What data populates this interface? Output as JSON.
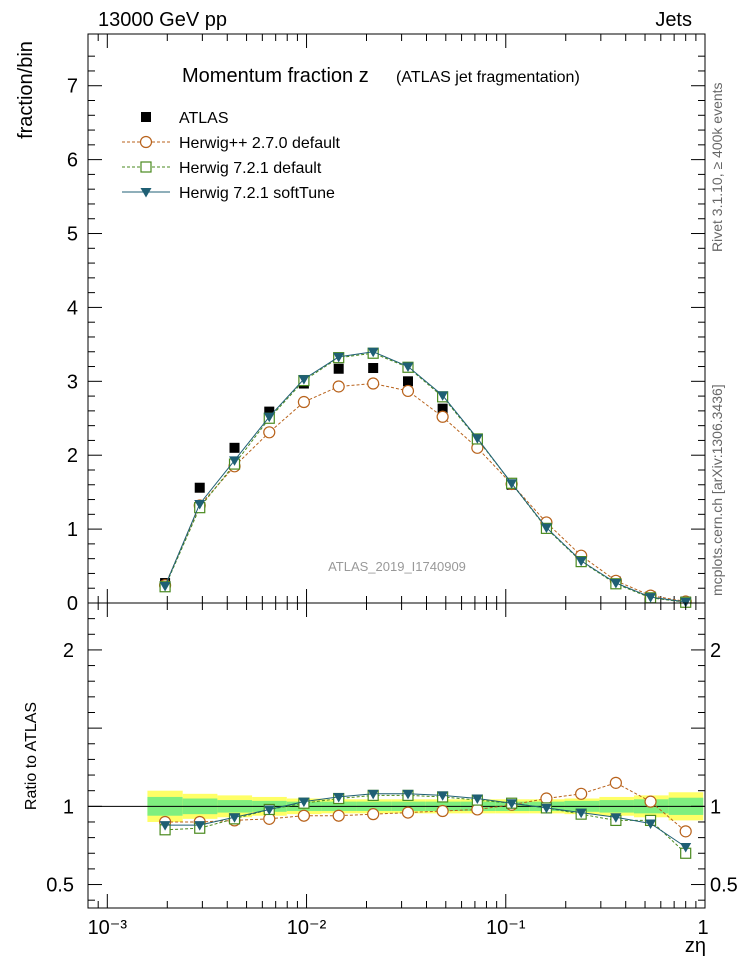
{
  "header": {
    "left": "13000 GeV pp",
    "right": "Jets",
    "side_right": "Rivet 3.1.10, ≥ 400k events",
    "side_right2": "mcplots.cern.ch [arXiv:1306.3436]"
  },
  "chart_data": [
    {
      "type": "scatter",
      "title": "Momentum fraction z",
      "subtitle": "(ATLAS jet fragmentation)",
      "ylabel": "fraction/bin",
      "xlabel": "zη",
      "xscale": "log",
      "xlim": [
        0.0008,
        1.0
      ],
      "ylim": [
        0,
        7.7
      ],
      "yticks": [
        0,
        1,
        2,
        3,
        4,
        5,
        6,
        7
      ],
      "xticks": [
        {
          "v": 0.001,
          "label": "10⁻³"
        },
        {
          "v": 0.01,
          "label": "10⁻²"
        },
        {
          "v": 0.1,
          "label": "10⁻¹"
        },
        {
          "v": 1,
          "label": "1"
        }
      ],
      "watermark": "ATLAS_2019_I1740909",
      "legend_position": "top-left",
      "x": [
        0.00195,
        0.00291,
        0.00435,
        0.0065,
        0.0097,
        0.0145,
        0.0216,
        0.0323,
        0.0482,
        0.072,
        0.107,
        0.16,
        0.239,
        0.357,
        0.533,
        0.8
      ],
      "series": [
        {
          "name": "ATLAS",
          "style": "data",
          "color": "#000000",
          "values": [
            0.27,
            1.56,
            2.1,
            2.59,
            2.97,
            3.17,
            3.18,
            3.0,
            2.63,
            2.14,
            1.6,
            1.03,
            0.6,
            0.29,
            0.09,
            0.02
          ]
        },
        {
          "name": "Herwig++ 2.7.0 default",
          "style": "circle",
          "color": "#b8621b",
          "values": [
            0.24,
            1.32,
            1.85,
            2.31,
            2.72,
            2.93,
            2.97,
            2.87,
            2.52,
            2.1,
            1.61,
            1.09,
            0.64,
            0.3,
            0.1,
            0.02
          ]
        },
        {
          "name": "Herwig 7.2.1 default",
          "style": "square",
          "color": "#4a8a1f",
          "values": [
            0.22,
            1.29,
            1.88,
            2.5,
            3.01,
            3.32,
            3.38,
            3.19,
            2.79,
            2.22,
            1.62,
            1.01,
            0.56,
            0.26,
            0.07,
            0.01
          ]
        },
        {
          "name": "Herwig 7.2.1 softTune",
          "style": "triangle",
          "color": "#1f5f74",
          "values": [
            0.23,
            1.34,
            1.93,
            2.52,
            3.03,
            3.33,
            3.4,
            3.2,
            2.81,
            2.23,
            1.62,
            1.02,
            0.57,
            0.27,
            0.08,
            0.015
          ]
        }
      ]
    },
    {
      "type": "scatter",
      "ylabel": "Ratio to ATLAS",
      "xlabel": "zη",
      "xscale": "log",
      "xlim": [
        0.0008,
        1.0
      ],
      "ylim": [
        0.35,
        2.3
      ],
      "yticks": [
        {
          "v": 0.5,
          "label": "0.5"
        },
        {
          "v": 1,
          "label": "1"
        },
        {
          "v": 2,
          "label": "2"
        }
      ],
      "x": [
        0.00195,
        0.00291,
        0.00435,
        0.0065,
        0.0097,
        0.0145,
        0.0216,
        0.0323,
        0.0482,
        0.072,
        0.107,
        0.16,
        0.239,
        0.357,
        0.533,
        0.8
      ],
      "band_edges": [
        0.00159,
        0.00239,
        0.00357,
        0.00533,
        0.00796,
        0.0119,
        0.0178,
        0.0266,
        0.0397,
        0.0592,
        0.0885,
        0.132,
        0.197,
        0.295,
        0.44,
        0.657,
        0.98
      ],
      "band_stat": [
        0.06,
        0.05,
        0.04,
        0.035,
        0.03,
        0.03,
        0.03,
        0.03,
        0.03,
        0.03,
        0.03,
        0.03,
        0.035,
        0.04,
        0.045,
        0.055
      ],
      "band_total": [
        0.1,
        0.08,
        0.07,
        0.06,
        0.05,
        0.045,
        0.045,
        0.045,
        0.045,
        0.045,
        0.045,
        0.045,
        0.05,
        0.06,
        0.07,
        0.09
      ],
      "band_colors": {
        "stat": "#7fef7f",
        "total": "#ffff66"
      },
      "series": [
        {
          "name": "Herwig++ 2.7.0 default",
          "style": "circle",
          "color": "#b8621b",
          "values": [
            0.9,
            0.9,
            0.91,
            0.92,
            0.94,
            0.94,
            0.95,
            0.96,
            0.97,
            0.98,
            1.01,
            1.05,
            1.08,
            1.15,
            1.03,
            0.84
          ]
        },
        {
          "name": "Herwig 7.2.1 default",
          "style": "square",
          "color": "#4a8a1f",
          "values": [
            0.85,
            0.86,
            0.92,
            0.98,
            1.02,
            1.05,
            1.07,
            1.07,
            1.06,
            1.04,
            1.02,
            0.99,
            0.95,
            0.91,
            0.91,
            0.7
          ]
        },
        {
          "name": "Herwig 7.2.1 softTune",
          "style": "triangle",
          "color": "#1f5f74",
          "values": [
            0.88,
            0.88,
            0.93,
            0.98,
            1.03,
            1.06,
            1.08,
            1.08,
            1.07,
            1.05,
            1.02,
            0.99,
            0.96,
            0.93,
            0.89,
            0.74
          ]
        }
      ]
    }
  ]
}
